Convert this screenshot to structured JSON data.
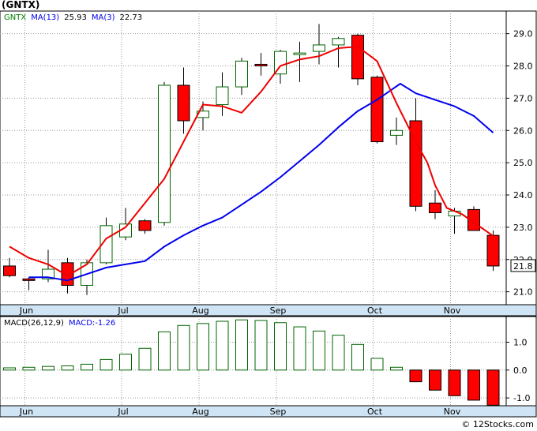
{
  "title": "(GNTX)",
  "copyright": "© 12Stocks.com",
  "colors": {
    "up_fill": "#ffffff",
    "up_stroke": "#006400",
    "down_fill": "#ff0000",
    "ma13": "#0000ee",
    "ma3": "#ee0000",
    "axis_band": "#cfe4f4",
    "macd_up": "#006400",
    "macd_down": "#ff0000",
    "frame": "#000000"
  },
  "chart_data": [
    {
      "type": "candlestick",
      "ticker": "GNTX",
      "legend": {
        "ticker": "GNTX",
        "ma13_label": "MA(13)",
        "ma13_value": "25.93",
        "ma3_label": "MA(3)",
        "ma3_value": "22.73"
      },
      "last_price_label": "21.8",
      "ylim": [
        20.6,
        29.7
      ],
      "yticks": [
        21.0,
        22.0,
        23.0,
        24.0,
        25.0,
        26.0,
        27.0,
        28.0,
        29.0
      ],
      "ytick_labels": [
        "21.0",
        "22.0",
        "23.0",
        "24.0",
        "25.0",
        "26.0",
        "27.0",
        "28.0",
        "29.0"
      ],
      "month_labels": [
        {
          "label": "Jun",
          "index": 1
        },
        {
          "label": "Jul",
          "index": 6
        },
        {
          "label": "Aug",
          "index": 10
        },
        {
          "label": "Sep",
          "index": 14
        },
        {
          "label": "Oct",
          "index": 19
        },
        {
          "label": "Nov",
          "index": 23
        }
      ],
      "candles": [
        {
          "o": 21.8,
          "h": 22.05,
          "l": 21.45,
          "c": 21.5
        },
        {
          "o": 21.4,
          "h": 21.45,
          "l": 21.05,
          "c": 21.35
        },
        {
          "o": 21.4,
          "h": 22.3,
          "l": 21.3,
          "c": 21.7
        },
        {
          "o": 21.9,
          "h": 22.05,
          "l": 20.95,
          "c": 21.2
        },
        {
          "o": 21.2,
          "h": 22.0,
          "l": 20.9,
          "c": 21.9
        },
        {
          "o": 21.9,
          "h": 23.3,
          "l": 21.85,
          "c": 23.05
        },
        {
          "o": 22.7,
          "h": 23.6,
          "l": 22.6,
          "c": 23.1
        },
        {
          "o": 23.2,
          "h": 23.25,
          "l": 22.8,
          "c": 22.9
        },
        {
          "o": 23.15,
          "h": 27.5,
          "l": 23.05,
          "c": 27.4
        },
        {
          "o": 27.4,
          "h": 27.95,
          "l": 25.9,
          "c": 26.3
        },
        {
          "o": 26.4,
          "h": 26.9,
          "l": 26.0,
          "c": 26.6
        },
        {
          "o": 26.8,
          "h": 27.8,
          "l": 26.45,
          "c": 27.35
        },
        {
          "o": 27.35,
          "h": 28.25,
          "l": 27.1,
          "c": 28.15
        },
        {
          "o": 28.05,
          "h": 28.4,
          "l": 27.7,
          "c": 28.0
        },
        {
          "o": 27.75,
          "h": 28.5,
          "l": 27.45,
          "c": 28.45
        },
        {
          "o": 28.35,
          "h": 28.75,
          "l": 27.5,
          "c": 28.4
        },
        {
          "o": 28.45,
          "h": 29.3,
          "l": 28.05,
          "c": 28.65
        },
        {
          "o": 28.65,
          "h": 28.9,
          "l": 27.95,
          "c": 28.85
        },
        {
          "o": 28.95,
          "h": 29.0,
          "l": 27.4,
          "c": 27.6
        },
        {
          "o": 27.65,
          "h": 27.7,
          "l": 25.6,
          "c": 25.65
        },
        {
          "o": 25.85,
          "h": 26.4,
          "l": 25.55,
          "c": 26.0
        },
        {
          "o": 26.3,
          "h": 27.0,
          "l": 23.5,
          "c": 23.65
        },
        {
          "o": 23.75,
          "h": 24.15,
          "l": 23.25,
          "c": 23.45
        },
        {
          "o": 23.35,
          "h": 23.6,
          "l": 22.8,
          "c": 23.5
        },
        {
          "o": 23.55,
          "h": 23.65,
          "l": 22.9,
          "c": 22.9
        },
        {
          "o": 22.75,
          "h": 22.9,
          "l": 21.65,
          "c": 21.8
        }
      ],
      "ma13": [
        null,
        21.45,
        21.45,
        21.35,
        21.55,
        21.75,
        21.85,
        21.95,
        22.4,
        22.75,
        23.05,
        23.3,
        23.7,
        24.1,
        24.55,
        25.05,
        25.55,
        26.1,
        26.6,
        26.95,
        27.2,
        27.45,
        27.15,
        26.95,
        26.75,
        26.45,
        25.93
      ],
      "ma13_x": [
        0,
        1,
        2,
        3,
        4,
        5,
        6,
        7,
        8,
        9,
        10,
        11,
        12,
        13,
        14,
        15,
        16,
        17,
        18,
        19,
        19.6,
        20.2,
        21,
        22,
        23,
        24,
        25
      ],
      "ma3": [
        22.4,
        22.05,
        21.85,
        21.5,
        21.85,
        22.65,
        23.0,
        24.5,
        26.8,
        26.75,
        26.55,
        27.2,
        28.0,
        28.2,
        28.3,
        28.55,
        28.6,
        28.15,
        26.85,
        25.65,
        25.0,
        24.3,
        23.6,
        23.4,
        22.73
      ],
      "ma3_x": [
        0,
        1,
        2,
        3,
        4,
        5,
        6,
        8,
        10,
        11,
        12,
        13,
        14,
        15,
        16,
        17,
        18,
        19,
        20,
        21,
        21.6,
        22,
        22.6,
        23.4,
        25
      ]
    },
    {
      "type": "bar",
      "legend": {
        "macd_params": "MACD(26,12,9)",
        "macd_label": "MACD:",
        "macd_value": "-1.26"
      },
      "ylim": [
        -1.28,
        1.92
      ],
      "yticks": [
        1.0,
        0.0,
        -1.0
      ],
      "ytick_labels": [
        "1.0",
        "0.0",
        "-1.0"
      ],
      "values": [
        0.08,
        0.1,
        0.13,
        0.15,
        0.21,
        0.38,
        0.57,
        0.78,
        1.37,
        1.6,
        1.67,
        1.75,
        1.8,
        1.78,
        1.7,
        1.55,
        1.4,
        1.25,
        0.92,
        0.42,
        0.1,
        -0.42,
        -0.72,
        -0.92,
        -1.08,
        -1.26
      ],
      "month_labels": [
        {
          "label": "Jun",
          "index": 1
        },
        {
          "label": "Jul",
          "index": 6
        },
        {
          "label": "Aug",
          "index": 10
        },
        {
          "label": "Sep",
          "index": 14
        },
        {
          "label": "Oct",
          "index": 19
        },
        {
          "label": "Nov",
          "index": 23
        }
      ]
    }
  ]
}
